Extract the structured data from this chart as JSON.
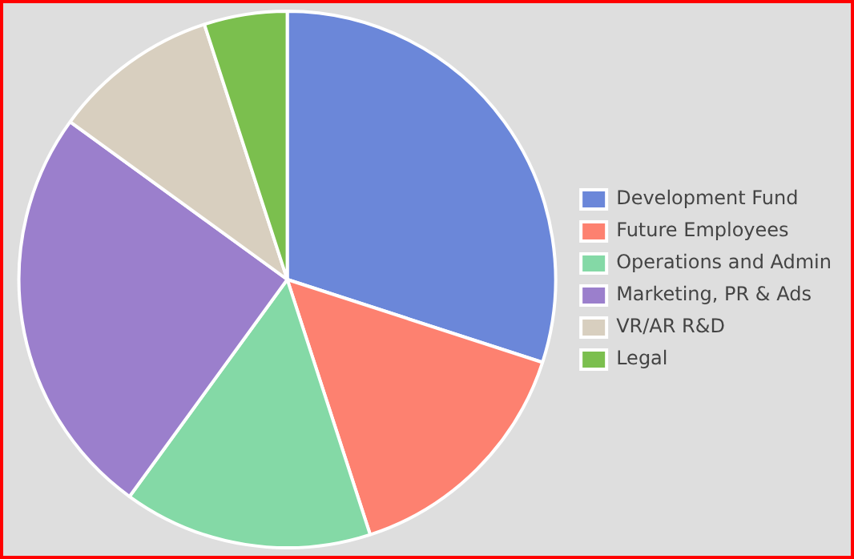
{
  "chart_data": {
    "type": "pie",
    "categories": [
      "Development Fund",
      "Future Employees",
      "Operations and Admin",
      "Marketing, PR & Ads",
      "VR/AR R&D",
      "Legal"
    ],
    "values": [
      30,
      15,
      15,
      25,
      10,
      5
    ],
    "colors": [
      "#6b87d9",
      "#fd8170",
      "#84d9a6",
      "#9b7fcc",
      "#d8cfbf",
      "#7bbf4e"
    ],
    "legend": "right"
  }
}
